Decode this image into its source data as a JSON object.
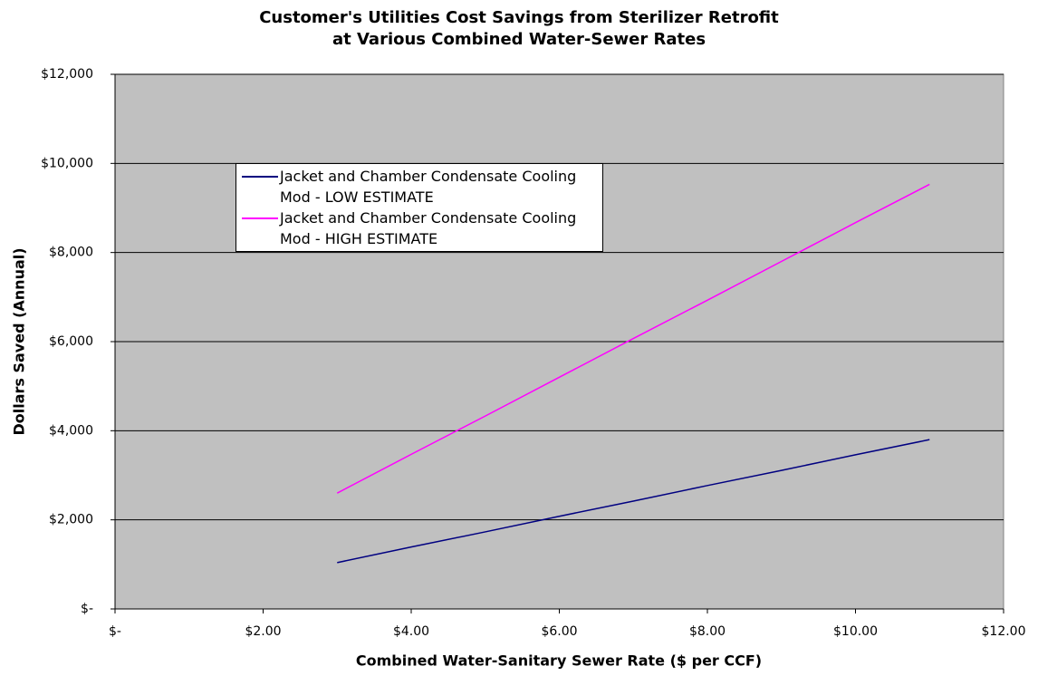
{
  "chart_data": {
    "type": "line",
    "title": [
      "Customer's Utilities Cost Savings from Sterilizer Retrofit",
      "at Various Combined Water-Sewer Rates"
    ],
    "x_label": "Combined Water-Sanitary Sewer Rate ($ per CCF)",
    "y_label": "Dollars Saved (Annual)",
    "x": [
      3,
      4,
      5,
      6,
      7,
      8,
      9,
      10,
      11
    ],
    "series": [
      {
        "name": "Jacket and Chamber Condensate Cooling Mod - LOW ESTIMATE",
        "color": "#000080",
        "values": [
          1040,
          1390,
          1730,
          2080,
          2420,
          2770,
          3110,
          3460,
          3800
        ]
      },
      {
        "name": "Jacket and Chamber Condensate Cooling Mod - HIGH ESTIMATE",
        "color": "#ff00ff",
        "values": [
          2600,
          3470,
          4330,
          5200,
          6070,
          6930,
          7800,
          8670,
          9530
        ]
      }
    ],
    "xlim": [
      0,
      12
    ],
    "xticks": [
      {
        "value": 0,
        "label": "$-"
      },
      {
        "value": 2,
        "label": "$2.00"
      },
      {
        "value": 4,
        "label": "$4.00"
      },
      {
        "value": 6,
        "label": "$6.00"
      },
      {
        "value": 8,
        "label": "$8.00"
      },
      {
        "value": 10,
        "label": "$10.00"
      },
      {
        "value": 12,
        "label": "$12.00"
      }
    ],
    "ylim": [
      0,
      12000
    ],
    "yticks": [
      {
        "value": 0,
        "label": "$-"
      },
      {
        "value": 2000,
        "label": "$2,000"
      },
      {
        "value": 4000,
        "label": "$4,000"
      },
      {
        "value": 6000,
        "label": "$6,000"
      },
      {
        "value": 8000,
        "label": "$8,000"
      },
      {
        "value": 10000,
        "label": "$10,000"
      },
      {
        "value": 12000,
        "label": "$12,000"
      }
    ],
    "grid": true,
    "legend": "upper left"
  }
}
